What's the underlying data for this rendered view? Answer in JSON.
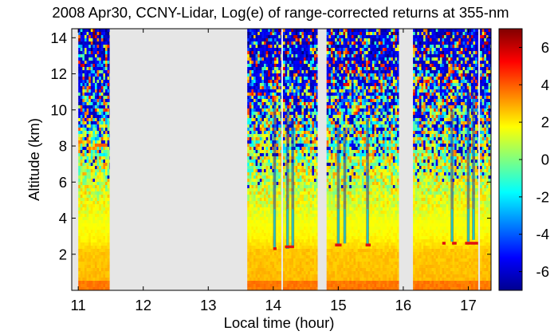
{
  "chart_data": {
    "type": "heatmap",
    "title": "2008 Apr30, CCNY-Lidar, Log(e) of range-corrected returns at 355-nm",
    "xlabel": "Local time (hour)",
    "ylabel": "Altitude (km)",
    "xlim": [
      10.9,
      17.35
    ],
    "ylim": [
      0,
      14.5
    ],
    "x_ticks": [
      11,
      12,
      13,
      14,
      15,
      16,
      17
    ],
    "y_ticks": [
      2,
      4,
      6,
      8,
      10,
      12,
      14
    ],
    "colorbar": {
      "range": [
        -7,
        7
      ],
      "ticks": [
        -6,
        -4,
        -2,
        0,
        2,
        4,
        6
      ],
      "colormap": "jet"
    },
    "no_data_color": "#e6e6e6",
    "data_segments": [
      {
        "start": 11.0,
        "end": 11.48
      },
      {
        "start": 13.6,
        "end": 14.12
      },
      {
        "start": 14.15,
        "end": 14.68
      },
      {
        "start": 14.82,
        "end": 15.93
      },
      {
        "start": 16.15,
        "end": 17.15
      },
      {
        "start": 17.18,
        "end": 17.35
      }
    ],
    "cloud_base_km": [
      {
        "start": 14.0,
        "end": 14.05,
        "altitude": 2.3
      },
      {
        "start": 14.18,
        "end": 14.32,
        "altitude": 2.4
      },
      {
        "start": 14.95,
        "end": 15.05,
        "altitude": 2.5
      },
      {
        "start": 15.42,
        "end": 15.5,
        "altitude": 2.5
      },
      {
        "start": 16.6,
        "end": 16.65,
        "altitude": 2.6
      },
      {
        "start": 16.75,
        "end": 16.82,
        "altitude": 2.6
      },
      {
        "start": 16.95,
        "end": 17.15,
        "altitude": 2.6
      }
    ],
    "vertical_streaks": [
      {
        "x": 14.02,
        "top": 10.5,
        "bottom": 2.3
      },
      {
        "x": 14.22,
        "top": 10.0,
        "bottom": 2.3
      },
      {
        "x": 14.3,
        "top": 9.5,
        "bottom": 2.4
      },
      {
        "x": 15.0,
        "top": 9.0,
        "bottom": 2.5
      },
      {
        "x": 15.1,
        "top": 9.0,
        "bottom": 2.6
      },
      {
        "x": 15.45,
        "top": 9.5,
        "bottom": 2.5
      },
      {
        "x": 16.75,
        "top": 10.0,
        "bottom": 2.7
      },
      {
        "x": 17.0,
        "top": 11.0,
        "bottom": 2.7
      },
      {
        "x": 17.08,
        "top": 11.0,
        "bottom": 2.8
      }
    ]
  }
}
